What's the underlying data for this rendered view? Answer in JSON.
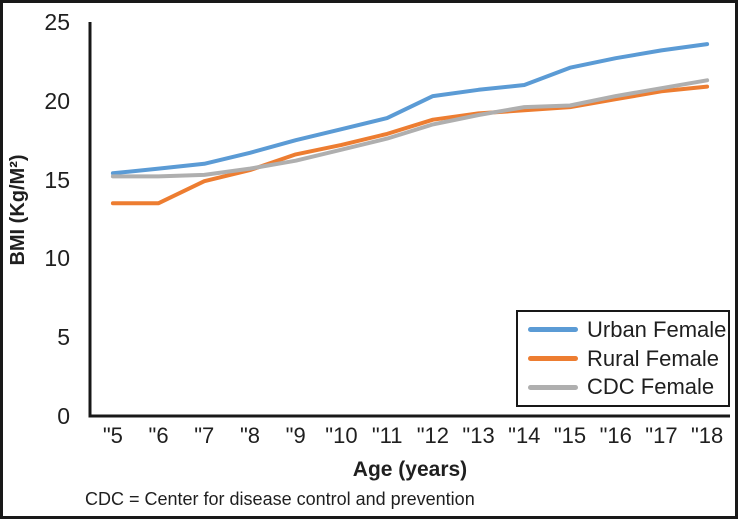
{
  "footnote": "CDC = Center for disease control and prevention",
  "axis_color": "#181818",
  "chart_data": {
    "type": "line",
    "title": "",
    "xlabel": "Age (years)",
    "ylabel": "BMI (Kg/M²)",
    "ylim": [
      0,
      25
    ],
    "yticks": [
      0,
      5,
      10,
      15,
      20,
      25
    ],
    "grid": false,
    "legend_position": "inside-bottom-right",
    "categories": [
      "\"5",
      "\"6",
      "\"7",
      "\"8",
      "\"9",
      "\"10",
      "\"11",
      "\"12",
      "\"13",
      "\"14",
      "\"15",
      "\"16",
      "\"17",
      "\"18"
    ],
    "series": [
      {
        "name": "Urban Female",
        "color": "#5B9BD5",
        "values": [
          15.4,
          15.7,
          16.0,
          16.7,
          17.5,
          18.2,
          18.9,
          20.3,
          20.7,
          21.0,
          22.1,
          22.7,
          23.2,
          23.6
        ]
      },
      {
        "name": "Rural Female",
        "color": "#ED7D31",
        "values": [
          13.5,
          13.5,
          14.9,
          15.6,
          16.6,
          17.2,
          17.9,
          18.8,
          19.2,
          19.4,
          19.6,
          20.1,
          20.6,
          20.9
        ]
      },
      {
        "name": "CDC Female",
        "color": "#AFAFAF",
        "values": [
          15.2,
          15.2,
          15.3,
          15.7,
          16.2,
          16.9,
          17.6,
          18.5,
          19.1,
          19.6,
          19.7,
          20.3,
          20.8,
          21.3
        ]
      }
    ]
  }
}
